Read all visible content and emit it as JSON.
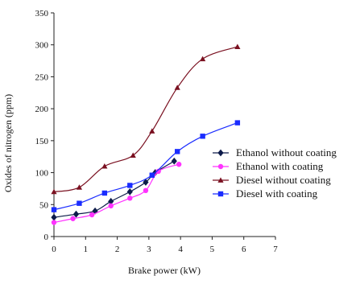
{
  "chart_data": {
    "type": "line",
    "title": "",
    "xlabel": "Brake power (kW)",
    "ylabel": "Oxides of nitrogen (ppm)",
    "xlim": [
      0,
      7
    ],
    "ylim": [
      0,
      350
    ],
    "xticks": [
      "0",
      "1",
      "2",
      "3",
      "4",
      "5",
      "6",
      "7"
    ],
    "yticks": [
      "0",
      "50",
      "100",
      "150",
      "200",
      "250",
      "300",
      "350"
    ],
    "grid": false,
    "legend_position": "right",
    "series": [
      {
        "name": "Ethanol without coating",
        "color": "#0d1b4a",
        "marker": "diamond",
        "x": [
          0,
          0.7,
          1.3,
          1.8,
          2.4,
          2.9,
          3.2,
          3.8
        ],
        "y": [
          30,
          35,
          40,
          55,
          70,
          85,
          100,
          118
        ]
      },
      {
        "name": "Ethanol with coating",
        "color": "#ff33ff",
        "marker": "circle",
        "x": [
          0,
          0.6,
          1.2,
          1.8,
          2.4,
          2.9,
          3.3,
          3.95
        ],
        "y": [
          22,
          28,
          34,
          48,
          60,
          72,
          102,
          113
        ]
      },
      {
        "name": "Diesel without coating",
        "color": "#7a1020",
        "marker": "triangle",
        "x": [
          0,
          0.8,
          1.6,
          2.5,
          3.1,
          3.9,
          4.7,
          5.8
        ],
        "y": [
          70,
          77,
          110,
          127,
          165,
          233,
          278,
          297
        ]
      },
      {
        "name": "Diesel with coating",
        "color": "#1a2cff",
        "marker": "square",
        "x": [
          0,
          0.8,
          1.6,
          2.4,
          3.1,
          3.9,
          4.7,
          5.8
        ],
        "y": [
          42,
          52,
          68,
          80,
          96,
          133,
          157,
          178
        ]
      }
    ]
  }
}
